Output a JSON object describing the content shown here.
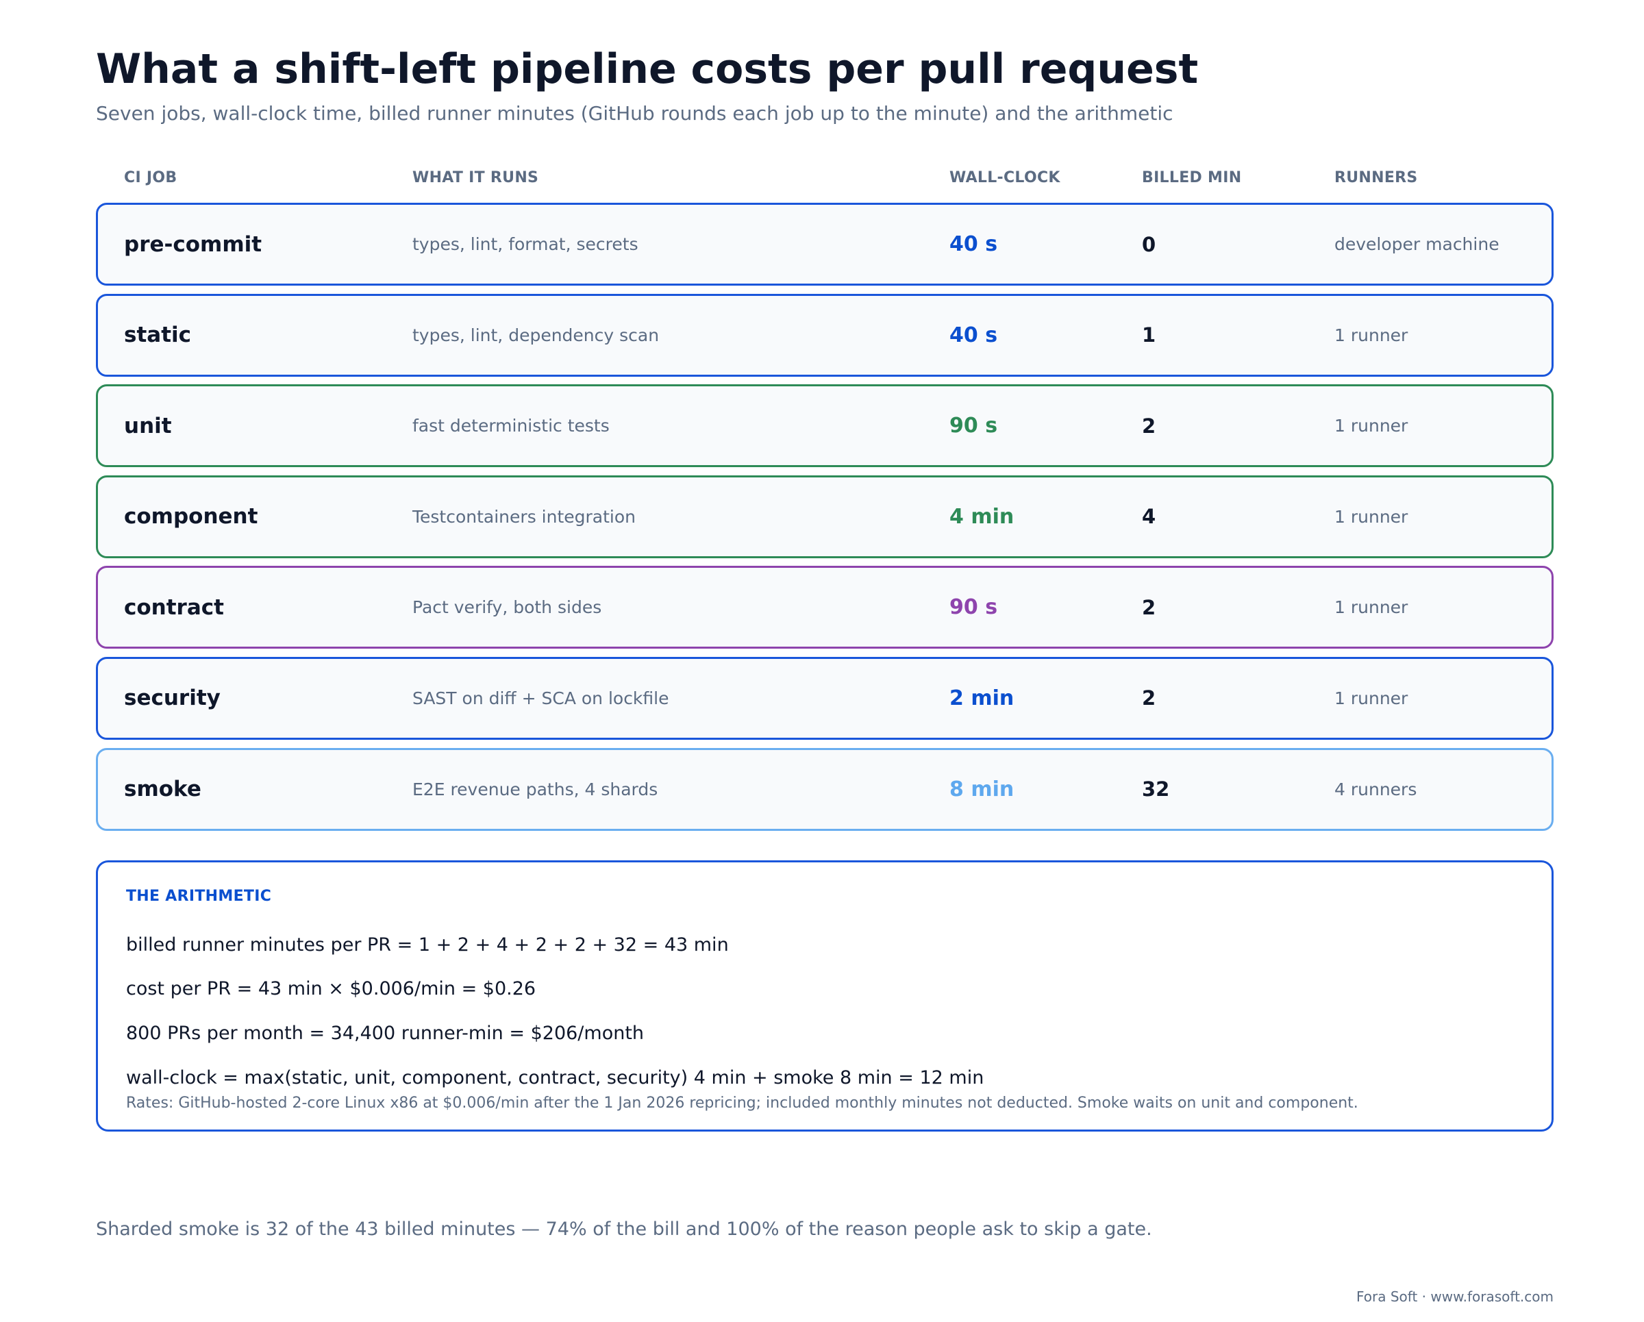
{
  "header": {
    "title": "What a shift-left pipeline costs per pull request",
    "subtitle": "Seven jobs, wall-clock time, billed runner minutes (GitHub rounds each job up to the minute) and the arithmetic"
  },
  "columns": {
    "job": "CI JOB",
    "runs": "WHAT IT RUNS",
    "wall": "WALL-CLOCK",
    "billed": "BILLED MIN",
    "runners": "RUNNERS"
  },
  "jobs": [
    {
      "name": "pre-commit",
      "runs": "types, lint, format, secrets",
      "wall": "40 s",
      "billed": "0",
      "runners": "developer machine",
      "color": "#1a56db",
      "text_color": "#0b4fcf"
    },
    {
      "name": "static",
      "runs": "types, lint, dependency scan",
      "wall": "40 s",
      "billed": "1",
      "runners": "1 runner",
      "color": "#1a56db",
      "text_color": "#0b4fcf"
    },
    {
      "name": "unit",
      "runs": "fast deterministic tests",
      "wall": "90 s",
      "billed": "2",
      "runners": "1 runner",
      "color": "#2e8b57",
      "text_color": "#2e8b57"
    },
    {
      "name": "component",
      "runs": "Testcontainers integration",
      "wall": "4 min",
      "billed": "4",
      "runners": "1 runner",
      "color": "#2e8b57",
      "text_color": "#2e8b57"
    },
    {
      "name": "contract",
      "runs": "Pact verify, both sides",
      "wall": "90 s",
      "billed": "2",
      "runners": "1 runner",
      "color": "#8e44ad",
      "text_color": "#8e44ad"
    },
    {
      "name": "security",
      "runs": "SAST on diff + SCA on lockfile",
      "wall": "2 min",
      "billed": "2",
      "runners": "1 runner",
      "color": "#1a56db",
      "text_color": "#0b4fcf"
    },
    {
      "name": "smoke",
      "runs": "E2E revenue paths, 4 shards",
      "wall": "8 min",
      "billed": "32",
      "runners": "4 runners",
      "color": "#6aaef0",
      "text_color": "#5ea8ee"
    }
  ],
  "arithmetic": {
    "title": "THE ARITHMETIC",
    "lines": [
      "billed runner minutes per PR = 1 + 2 + 4 + 2 + 2 + 32 = 43 min",
      "cost per PR = 43 min × $0.006/min = $0.26",
      "800 PRs per month = 34,400 runner-min = $206/month",
      "wall-clock = max(static, unit, component, contract, security) 4 min + smoke 8 min = 12 min"
    ],
    "note": "Rates: GitHub-hosted 2-core Linux x86 at $0.006/min after the 1 Jan 2026 repricing; included monthly minutes not deducted. Smoke waits on unit and component."
  },
  "footnote": "Sharded smoke is 32 of the 43 billed minutes — 74% of the bill and 100% of the reason people ask to skip a gate.",
  "credit": "Fora Soft · www.forasoft.com"
}
